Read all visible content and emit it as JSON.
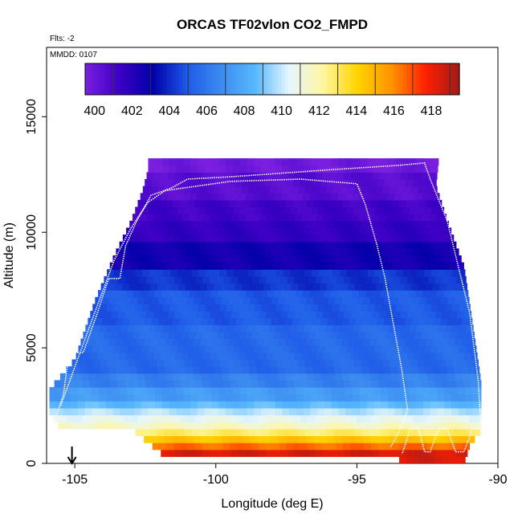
{
  "chart_data": {
    "type": "heatmap",
    "title": "ORCAS TF02vlon CO2_FMPD",
    "annotations": {
      "flights": "Flts: -2",
      "date": "MMDD: 0107"
    },
    "xlabel": "Longitude (deg E)",
    "ylabel": "Altitude (m)",
    "xlim": [
      -106,
      -90
    ],
    "ylim": [
      0,
      18000
    ],
    "xticks": [
      -105,
      -100,
      -95,
      -90
    ],
    "yticks": [
      0,
      5000,
      10000,
      15000
    ],
    "colorbar": {
      "min": 399.5,
      "max": 419.5,
      "ticks": [
        400,
        402,
        404,
        406,
        408,
        410,
        412,
        414,
        416,
        418
      ],
      "colors": [
        "#7a1fe0",
        "#3d00c4",
        "#0000a8",
        "#1e5ae8",
        "#3c8cf0",
        "#58b8ff",
        "#e6f6ff",
        "#fff6a0",
        "#ffd400",
        "#ff9400",
        "#ff2000",
        "#a31a1a"
      ]
    },
    "field": {
      "description": "CO2 mixing ratio curtain along longitude and altitude",
      "layers": [
        {
          "alt_max": 500,
          "value": 418.5
        },
        {
          "alt_max": 900,
          "value": 416.5
        },
        {
          "alt_max": 1200,
          "value": 414.5
        },
        {
          "alt_max": 1500,
          "value": 412.8
        },
        {
          "alt_max": 1900,
          "value": 411.5
        },
        {
          "alt_max": 2200,
          "value": 410.6
        },
        {
          "alt_max": 2500,
          "value": 409.8
        },
        {
          "alt_max": 2800,
          "value": 408.6
        },
        {
          "alt_max": 3200,
          "value": 407.4
        },
        {
          "alt_max": 4000,
          "value": 406.4
        },
        {
          "alt_max": 6000,
          "value": 405.5
        },
        {
          "alt_max": 7500,
          "value": 405.0
        },
        {
          "alt_max": 8500,
          "value": 404.2
        },
        {
          "alt_max": 9500,
          "value": 402.6
        },
        {
          "alt_max": 10500,
          "value": 401.6
        },
        {
          "alt_max": 11500,
          "value": 401.2
        },
        {
          "alt_max": 12500,
          "value": 400.5
        },
        {
          "alt_max": 13200,
          "value": 399.8
        }
      ]
    },
    "track_outbound": [
      [
        -105.8,
        1500
      ],
      [
        -105.4,
        3000
      ],
      [
        -105.2,
        4800
      ],
      [
        -104.7,
        4800
      ],
      [
        -104.2,
        6500
      ],
      [
        -103.8,
        8000
      ],
      [
        -103.4,
        8000
      ],
      [
        -103.2,
        9400
      ],
      [
        -102.8,
        10500
      ],
      [
        -102.3,
        11600
      ],
      [
        -101.6,
        11900
      ],
      [
        -101.0,
        12300
      ],
      [
        -99.5,
        12400
      ],
      [
        -96.0,
        12700
      ],
      [
        -93.5,
        12900
      ],
      [
        -92.6,
        13000
      ],
      [
        -92.4,
        12300
      ],
      [
        -91.8,
        10500
      ],
      [
        -91.4,
        8500
      ],
      [
        -91.0,
        6500
      ],
      [
        -90.7,
        3600
      ],
      [
        -90.6,
        1500
      ],
      [
        -90.9,
        1500
      ],
      [
        -91.2,
        500
      ],
      [
        -91.5,
        500
      ],
      [
        -91.8,
        1500
      ],
      [
        -92.1,
        1500
      ],
      [
        -92.4,
        500
      ],
      [
        -92.6,
        500
      ],
      [
        -92.8,
        1500
      ],
      [
        -93.1,
        1500
      ],
      [
        -93.4,
        400
      ]
    ],
    "track_return": [
      [
        -105.5,
        2500
      ],
      [
        -104.9,
        4500
      ],
      [
        -104.3,
        6500
      ],
      [
        -103.6,
        8800
      ],
      [
        -103.0,
        10200
      ],
      [
        -102.4,
        11300
      ],
      [
        -101.8,
        11800
      ],
      [
        -99.5,
        12200
      ],
      [
        -97.0,
        12300
      ],
      [
        -95.0,
        12100
      ],
      [
        -94.7,
        11200
      ],
      [
        -94.3,
        9500
      ],
      [
        -94.0,
        8000
      ],
      [
        -93.7,
        6000
      ],
      [
        -93.4,
        4000
      ],
      [
        -93.2,
        2300
      ],
      [
        -93.5,
        1400
      ],
      [
        -93.8,
        700
      ]
    ],
    "marker": {
      "x": -105.1,
      "label": "arrow"
    }
  }
}
